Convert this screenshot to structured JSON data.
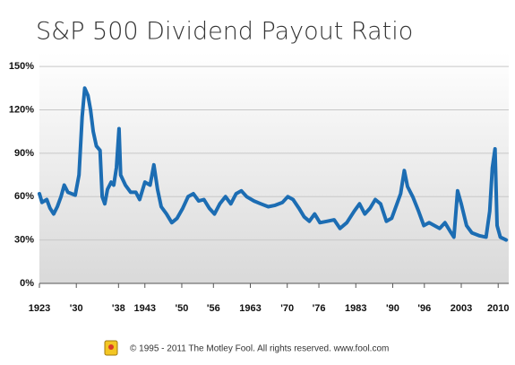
{
  "chart_data": {
    "type": "line",
    "title": "S&P 500 Dividend Payout Ratio",
    "footer": "© 1995 - 2011 The Motley Fool. All rights reserved. www.fool.com",
    "xlim": [
      1923,
      2012
    ],
    "ylim": [
      0,
      160
    ],
    "xticks": [
      1923,
      {
        "value": 1930,
        "label": "'30"
      },
      {
        "value": 1938,
        "label": "'38"
      },
      1943,
      {
        "value": 1950,
        "label": "'50"
      },
      {
        "value": 1956,
        "label": "'56"
      },
      1963,
      {
        "value": 1970,
        "label": "'70"
      },
      {
        "value": 1976,
        "label": "'76"
      },
      1983,
      {
        "value": 1990,
        "label": "'90"
      },
      {
        "value": 1996,
        "label": "'96"
      },
      2003,
      2010
    ],
    "yticks": [
      {
        "value": 0,
        "label": "0%"
      },
      {
        "value": 30,
        "label": "30%"
      },
      {
        "value": 60,
        "label": "60%"
      },
      {
        "value": 90,
        "label": "90%"
      },
      {
        "value": 120,
        "label": "120%"
      },
      {
        "value": 150,
        "label": "150%"
      }
    ],
    "grid": true,
    "series": [
      {
        "color": "#1c6db3",
        "x": [
          1923.0,
          1923.5,
          1924.4,
          1925.0,
          1925.7,
          1926.4,
          1927.1,
          1927.7,
          1928.4,
          1929.1,
          1929.8,
          1930.5,
          1931.1,
          1931.6,
          1932.2,
          1932.7,
          1933.2,
          1933.8,
          1934.5,
          1934.9,
          1935.4,
          1935.9,
          1936.6,
          1937.1,
          1937.6,
          1938.1,
          1938.4,
          1939.3,
          1940.3,
          1941.3,
          1942.0,
          1943.0,
          1944.0,
          1944.7,
          1945.4,
          1946.1,
          1947.1,
          1948.1,
          1949.1,
          1950.2,
          1951.2,
          1952.2,
          1953.2,
          1954.2,
          1955.2,
          1956.2,
          1957.2,
          1958.3,
          1959.3,
          1960.3,
          1961.3,
          1962.3,
          1963.7,
          1965.0,
          1966.4,
          1967.7,
          1969.1,
          1970.1,
          1971.1,
          1972.2,
          1973.2,
          1974.2,
          1975.2,
          1976.2,
          1977.6,
          1978.9,
          1980.0,
          1981.3,
          1982.7,
          1983.7,
          1984.7,
          1985.7,
          1986.7,
          1987.7,
          1988.8,
          1989.8,
          1990.8,
          1991.5,
          1992.2,
          1992.8,
          1993.8,
          1994.9,
          1995.9,
          1996.9,
          1997.9,
          1998.9,
          1999.9,
          2000.9,
          2001.6,
          2002.3,
          2003.0,
          2004.0,
          2005.0,
          2006.4,
          2007.7,
          2008.4,
          2008.9,
          2009.4,
          2009.8,
          2010.4,
          2011.5
        ],
        "values": [
          62,
          56,
          58,
          52,
          48,
          53,
          60,
          68,
          63,
          62,
          61,
          75,
          115,
          135,
          130,
          120,
          105,
          95,
          92,
          60,
          55,
          65,
          70,
          68,
          80,
          107,
          75,
          68,
          63,
          63,
          58,
          70,
          68,
          82,
          65,
          53,
          48,
          42,
          45,
          52,
          60,
          62,
          57,
          58,
          52,
          48,
          55,
          60,
          55,
          62,
          64,
          60,
          57,
          55,
          53,
          54,
          56,
          60,
          58,
          52,
          46,
          43,
          48,
          42,
          43,
          44,
          38,
          42,
          50,
          55,
          48,
          52,
          58,
          55,
          43,
          45,
          55,
          62,
          78,
          67,
          60,
          50,
          40,
          42,
          40,
          38,
          42,
          36,
          32,
          64,
          55,
          40,
          35,
          33,
          32,
          50,
          80,
          93,
          40,
          32,
          30
        ]
      }
    ]
  }
}
